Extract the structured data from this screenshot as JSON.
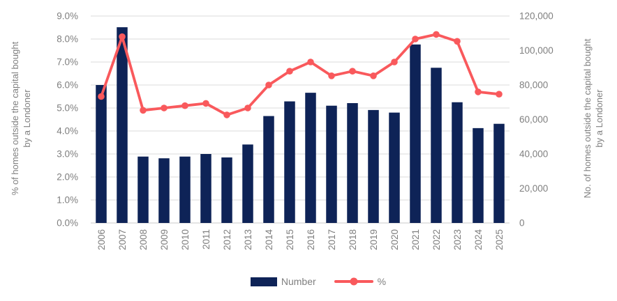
{
  "chart_data": {
    "type": "combo-bar-line",
    "categories": [
      "2006",
      "2007",
      "2008",
      "2009",
      "2010",
      "2011",
      "2012",
      "2013",
      "2014",
      "2015",
      "2016",
      "2017",
      "2018",
      "2019",
      "2020",
      "2021",
      "2022",
      "2023",
      "2024",
      "2025"
    ],
    "series": [
      {
        "name": "Number",
        "type": "bar",
        "axis": "right",
        "values": [
          80000,
          113500,
          38500,
          37500,
          38500,
          40000,
          38000,
          45500,
          62000,
          70500,
          75500,
          68000,
          69500,
          65500,
          64000,
          103500,
          90000,
          70000,
          55000,
          57500
        ]
      },
      {
        "name": "%",
        "type": "line",
        "axis": "left",
        "values": [
          5.5,
          8.1,
          4.9,
          5.0,
          5.1,
          5.2,
          4.7,
          5.0,
          6.0,
          6.6,
          7.0,
          6.4,
          6.6,
          6.4,
          7.0,
          8.0,
          8.2,
          7.9,
          5.7,
          5.6
        ]
      }
    ],
    "left_axis": {
      "title": "% of homes outside the capital bought by a Londoner",
      "min": 0,
      "max": 9,
      "tick_labels": [
        "9.0%",
        "8.0%",
        "7.0%",
        "6.0%",
        "5.0%",
        "4.0%",
        "3.0%",
        "2.0%",
        "1.0%",
        "0.0%"
      ],
      "tick_values": [
        9,
        8,
        7,
        6,
        5,
        4,
        3,
        2,
        1,
        0
      ]
    },
    "right_axis": {
      "title": "No. of homes outside the capital bought by a Londoner",
      "min": 0,
      "max": 120000,
      "tick_labels": [
        "120,000",
        "100,000",
        "80,000",
        "60,000",
        "40,000",
        "20,000",
        "0"
      ],
      "tick_values": [
        120000,
        100000,
        80000,
        60000,
        40000,
        20000,
        0
      ]
    },
    "legend": [
      {
        "label": "Number",
        "marker": "bar-swatch"
      },
      {
        "label": "%",
        "marker": "line-with-dot"
      }
    ],
    "grid": true,
    "legend_position": "bottom",
    "colors": {
      "bar": "#0E2357",
      "line": "#F9595C",
      "grid": "#DBDBDB",
      "axis_line": "#C8C8C8",
      "text": "#7F7F7F"
    }
  }
}
